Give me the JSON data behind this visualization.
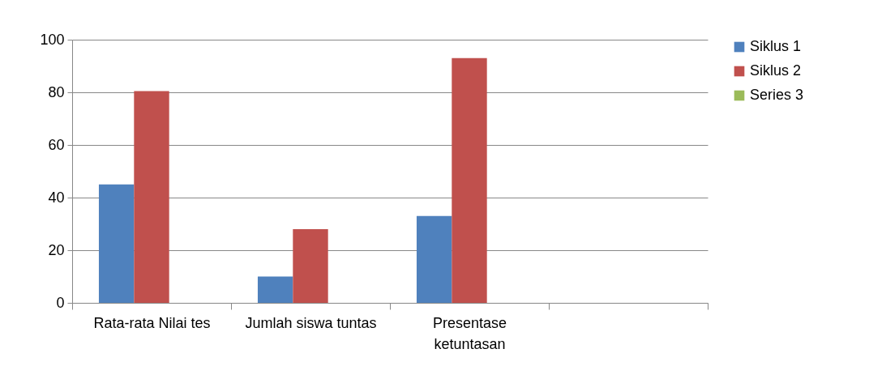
{
  "chart_data": {
    "type": "bar",
    "categories": [
      "Rata-rata Nilai tes",
      "Jumlah siswa tuntas",
      "Presentase ketuntasan",
      null
    ],
    "series": [
      {
        "name": "Siklus 1",
        "color": "#4f81bd",
        "values": [
          45,
          10,
          33,
          null
        ]
      },
      {
        "name": "Siklus 2",
        "color": "#c0504d",
        "values": [
          80.5,
          28,
          93,
          null
        ]
      },
      {
        "name": "Series 3",
        "color": "#9bbb59",
        "values": [
          null,
          null,
          null,
          null
        ]
      }
    ],
    "ylim": [
      0,
      100
    ],
    "yticks": [
      0,
      20,
      40,
      60,
      80,
      100
    ],
    "grid": "y",
    "legend": "right"
  }
}
